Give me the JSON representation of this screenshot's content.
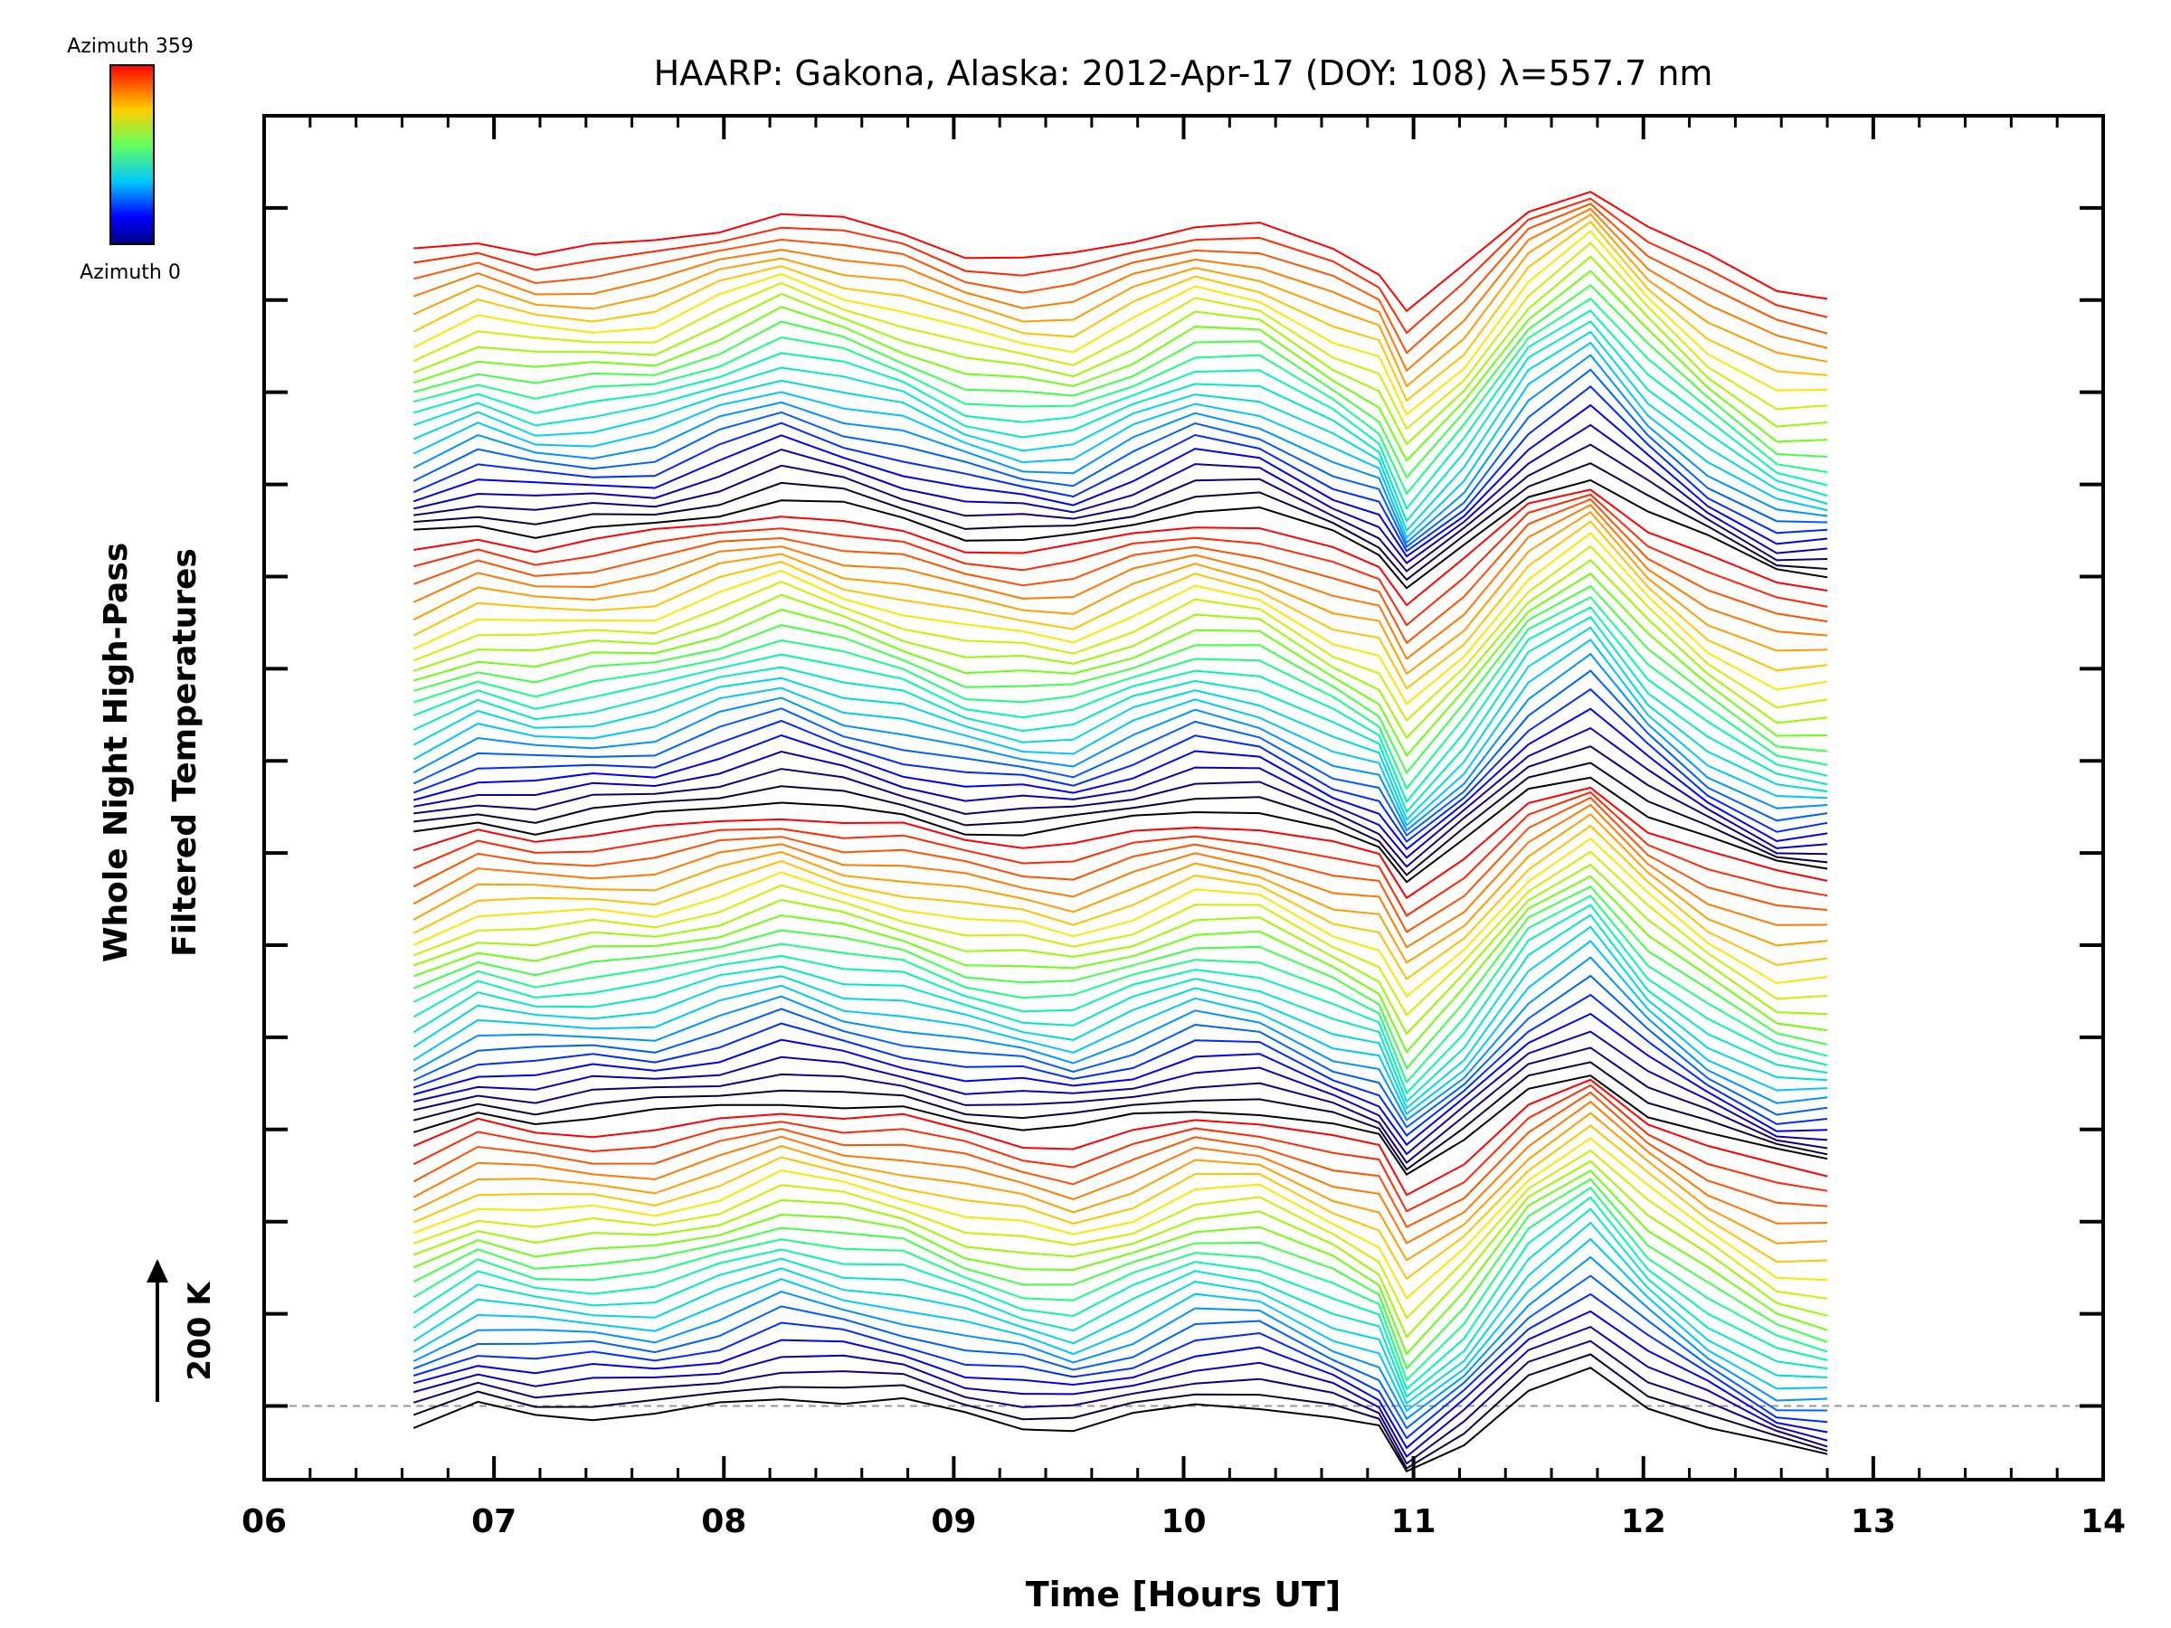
{
  "chart_data": {
    "type": "line",
    "title": "HAARP: Gakona,  Alaska: 2012-Apr-17 (DOY: 108) λ=557.7 nm",
    "xlabel": "Time [Hours UT]",
    "ylabel_lines": [
      "Whole Night High-Pass",
      "Filtered Temperatures"
    ],
    "scale_label": "200 K",
    "colorbar": {
      "top_label": "Azimuth 359",
      "bottom_label": "Azimuth 0",
      "colormap": "rainbow"
    },
    "xlim": [
      6,
      14
    ],
    "x_ticks": [
      "06",
      "07",
      "08",
      "09",
      "10",
      "11",
      "12",
      "13",
      "14"
    ],
    "ylim": [
      -400,
      7000
    ],
    "y_tick_step": 500,
    "y_tick_min": 0,
    "y_tick_max": 6500,
    "scale_bar_k": 200,
    "offset_per_azimuth_k": 67,
    "num_azimuths": 96,
    "grid": false,
    "legend": "none",
    "baseline_line": {
      "y": 0,
      "style": "dashed",
      "color": "#999999"
    },
    "series_note": "One high-pass filtered temperature trace per azimuth (0-359 deg), stacked with a constant vertical offset; 96 traces shown.",
    "x": [
      6.65,
      6.93,
      7.18,
      7.43,
      7.7,
      7.98,
      8.25,
      8.52,
      8.78,
      9.05,
      9.3,
      9.52,
      9.78,
      10.05,
      10.33,
      10.65,
      10.85,
      10.97,
      11.22,
      11.5,
      11.77,
      12.02,
      12.28,
      12.58,
      12.8
    ],
    "baseline_profile_k": [
      -150,
      -40,
      -80,
      -70,
      -60,
      20,
      100,
      40,
      -10,
      -90,
      -130,
      -150,
      -60,
      40,
      20,
      -120,
      -200,
      -430,
      -220,
      100,
      260,
      20,
      -160,
      -320,
      -340
    ],
    "colors": {
      "azimuth_0": "#000080",
      "azimuth_90": "#00c8ff",
      "azimuth_180": "#80ff00",
      "azimuth_270": "#ffb000",
      "azimuth_359": "#ff2000"
    }
  }
}
